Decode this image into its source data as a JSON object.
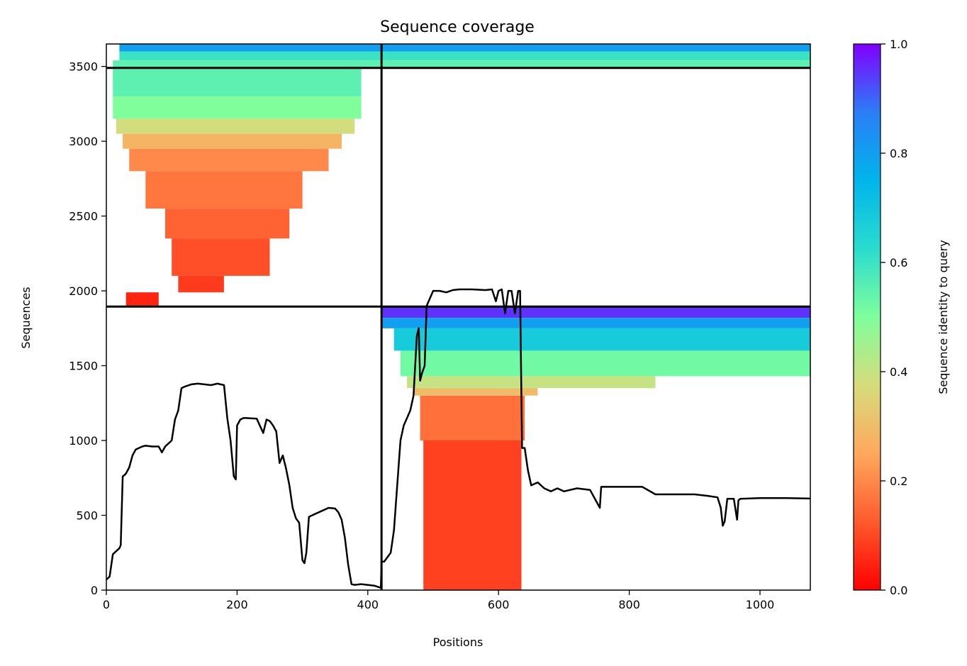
{
  "chart_data": {
    "type": "heatmap",
    "title": "Sequence coverage",
    "xlabel": "Positions",
    "ylabel": "Sequences",
    "xlim": [
      0,
      1077
    ],
    "ylim": [
      0,
      3650
    ],
    "x_ticks": [
      0,
      200,
      400,
      600,
      800,
      1000
    ],
    "y_ticks": [
      0,
      500,
      1000,
      1500,
      2000,
      2500,
      3000,
      3500
    ],
    "chain_boundary_x": 421,
    "section_boundaries_y": [
      1895,
      3490
    ],
    "colorbar": {
      "label": "Sequence identity to query",
      "range": [
        0.0,
        1.0
      ],
      "ticks": [
        0.0,
        0.2,
        0.4,
        0.6,
        0.8,
        1.0
      ],
      "colormap": "rainbow_r"
    },
    "coverage_blocks": [
      {
        "y0": 3600,
        "y1": 3650,
        "x0": 20,
        "x1": 1077,
        "identity": 0.8
      },
      {
        "y0": 3540,
        "y1": 3600,
        "x0": 20,
        "x1": 1077,
        "identity": 0.6
      },
      {
        "y0": 3490,
        "y1": 3540,
        "x0": 10,
        "x1": 1077,
        "identity": 0.55
      },
      {
        "y0": 3300,
        "y1": 3490,
        "x0": 10,
        "x1": 390,
        "identity": 0.55
      },
      {
        "y0": 3150,
        "y1": 3300,
        "x0": 10,
        "x1": 390,
        "identity": 0.5
      },
      {
        "y0": 3050,
        "y1": 3150,
        "x0": 15,
        "x1": 380,
        "identity": 0.38
      },
      {
        "y0": 2950,
        "y1": 3050,
        "x0": 25,
        "x1": 360,
        "identity": 0.28
      },
      {
        "y0": 2800,
        "y1": 2950,
        "x0": 35,
        "x1": 340,
        "identity": 0.2
      },
      {
        "y0": 2550,
        "y1": 2800,
        "x0": 60,
        "x1": 300,
        "identity": 0.17
      },
      {
        "y0": 2350,
        "y1": 2550,
        "x0": 90,
        "x1": 280,
        "identity": 0.14
      },
      {
        "y0": 2100,
        "y1": 2350,
        "x0": 100,
        "x1": 250,
        "identity": 0.11
      },
      {
        "y0": 1990,
        "y1": 2100,
        "x0": 110,
        "x1": 180,
        "identity": 0.08
      },
      {
        "y0": 1895,
        "y1": 1990,
        "x0": 30,
        "x1": 80,
        "identity": 0.05
      },
      {
        "y0": 1820,
        "y1": 1895,
        "x0": 421,
        "x1": 1077,
        "identity": 0.95
      },
      {
        "y0": 1750,
        "y1": 1820,
        "x0": 421,
        "x1": 1077,
        "identity": 0.8
      },
      {
        "y0": 1600,
        "y1": 1750,
        "x0": 440,
        "x1": 1077,
        "identity": 0.68
      },
      {
        "y0": 1430,
        "y1": 1600,
        "x0": 450,
        "x1": 1077,
        "identity": 0.52
      },
      {
        "y0": 1350,
        "y1": 1430,
        "x0": 460,
        "x1": 840,
        "identity": 0.4
      },
      {
        "y0": 1300,
        "y1": 1350,
        "x0": 470,
        "x1": 660,
        "identity": 0.3
      },
      {
        "y0": 1000,
        "y1": 1300,
        "x0": 480,
        "x1": 640,
        "identity": 0.16
      },
      {
        "y0": 0,
        "y1": 1000,
        "x0": 485,
        "x1": 635,
        "identity": 0.09
      }
    ],
    "coverage_line": {
      "x": [
        0,
        5,
        10,
        15,
        20,
        22,
        25,
        28,
        30,
        35,
        40,
        45,
        50,
        55,
        60,
        70,
        80,
        85,
        90,
        95,
        100,
        105,
        110,
        115,
        120,
        130,
        140,
        150,
        160,
        170,
        180,
        185,
        190,
        195,
        198,
        200,
        205,
        210,
        215,
        220,
        230,
        240,
        245,
        250,
        255,
        260,
        265,
        270,
        275,
        280,
        285,
        290,
        295,
        300,
        303,
        306,
        310,
        320,
        330,
        340,
        350,
        355,
        360,
        365,
        370,
        375,
        380,
        390,
        410,
        420,
        421,
        425,
        430,
        435,
        440,
        445,
        450,
        455,
        460,
        465,
        470,
        475,
        478,
        480,
        483,
        487,
        490,
        500,
        510,
        520,
        530,
        540,
        560,
        580,
        590,
        596,
        600,
        605,
        610,
        615,
        620,
        625,
        630,
        633,
        636,
        640,
        645,
        650,
        660,
        670,
        680,
        690,
        700,
        720,
        740,
        755,
        757,
        760,
        780,
        800,
        820,
        840,
        860,
        880,
        900,
        920,
        935,
        940,
        943,
        946,
        950,
        960,
        965,
        967,
        970,
        1000,
        1040,
        1077
      ],
      "y": [
        70,
        90,
        240,
        260,
        280,
        300,
        760,
        770,
        780,
        820,
        900,
        940,
        950,
        960,
        965,
        960,
        960,
        920,
        960,
        980,
        1000,
        1140,
        1200,
        1350,
        1360,
        1375,
        1380,
        1375,
        1370,
        1380,
        1370,
        1150,
        1000,
        760,
        740,
        1100,
        1140,
        1150,
        1150,
        1148,
        1146,
        1050,
        1140,
        1130,
        1100,
        1060,
        850,
        900,
        810,
        700,
        550,
        480,
        450,
        200,
        180,
        250,
        490,
        510,
        530,
        550,
        545,
        520,
        470,
        350,
        170,
        40,
        35,
        40,
        30,
        15,
        190,
        190,
        220,
        250,
        400,
        700,
        1000,
        1100,
        1150,
        1200,
        1300,
        1700,
        1750,
        1400,
        1450,
        1500,
        1900,
        2000,
        2000,
        1990,
        2005,
        2010,
        2010,
        2005,
        2010,
        1930,
        2000,
        2010,
        1850,
        2000,
        2000,
        1850,
        2000,
        2000,
        950,
        950,
        800,
        700,
        720,
        680,
        660,
        680,
        660,
        680,
        670,
        550,
        690,
        690,
        690,
        690,
        690,
        640,
        640,
        640,
        640,
        630,
        620,
        550,
        430,
        460,
        610,
        610,
        470,
        600,
        610,
        615,
        615,
        612
      ]
    }
  }
}
